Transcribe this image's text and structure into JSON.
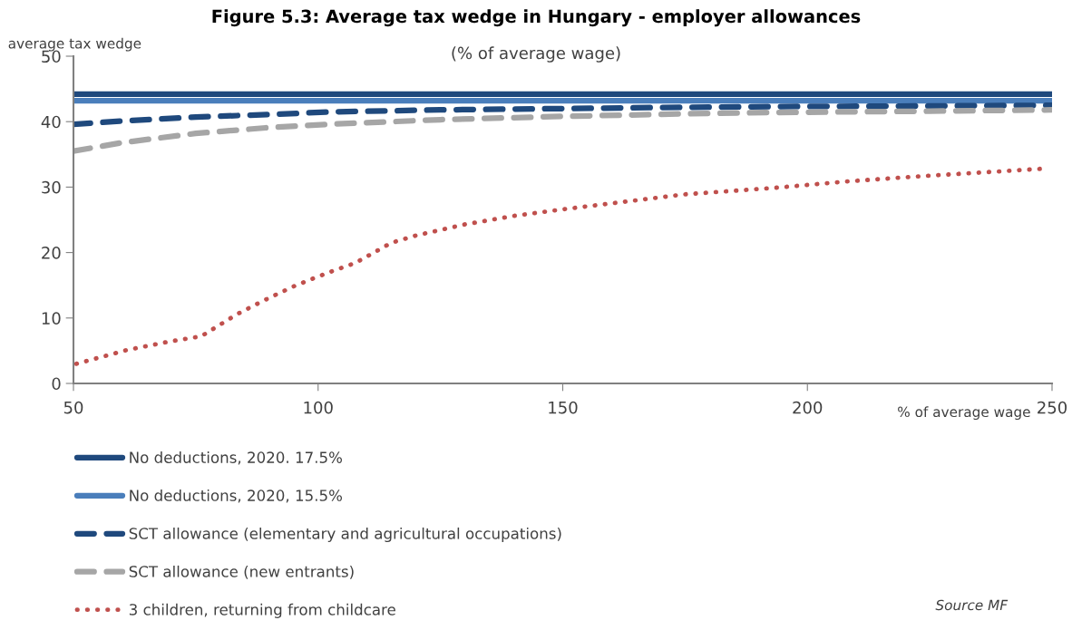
{
  "chart_data": {
    "type": "line",
    "title": "Figure 5.3: Average tax wedge in Hungary - employer allowances",
    "subtitle": "(% of average wage)",
    "xlabel": "% of average wage",
    "ylabel": "average tax wedge",
    "xlim": [
      50,
      250
    ],
    "ylim": [
      0,
      50
    ],
    "xticks": [
      50,
      100,
      150,
      200,
      250
    ],
    "yticks": [
      0,
      10,
      20,
      30,
      40,
      50
    ],
    "grid": false,
    "legend": "bottom",
    "series": [
      {
        "name": "No deductions, 2020. 17.5%",
        "color": "#1f497d",
        "line_style": "solid",
        "x": [
          50,
          250
        ],
        "values": [
          44.2,
          44.2
        ]
      },
      {
        "name": "No deductions, 2020, 15.5%",
        "color": "#4a7ebb",
        "line_style": "solid",
        "x": [
          50,
          250
        ],
        "values": [
          43.2,
          43.2
        ]
      },
      {
        "name": "SCT allowance (elementary and agricultural occupations)",
        "color": "#1f497d",
        "line_style": "dashed",
        "x": [
          50,
          60,
          75,
          90,
          103,
          125,
          150,
          175,
          193,
          225,
          250
        ],
        "values": [
          39.6,
          40.1,
          40.7,
          41.1,
          41.5,
          41.8,
          42.0,
          42.2,
          42.3,
          42.4,
          42.5
        ]
      },
      {
        "name": "SCT allowance (new entrants)",
        "color": "#a6a6a6",
        "line_style": "dashed",
        "x": [
          50,
          60,
          75,
          90,
          105,
          125,
          150,
          175,
          193,
          225,
          250
        ],
        "values": [
          35.5,
          36.8,
          38.2,
          39.1,
          39.7,
          40.3,
          40.8,
          41.2,
          41.4,
          41.6,
          41.8
        ]
      },
      {
        "name": "3 children, returning from childcare",
        "color": "#c0504d",
        "line_style": "dotted",
        "x": [
          50.6,
          60.9,
          69.6,
          76.1,
          79.8,
          83.5,
          87.4,
          91.2,
          95.2,
          99.2,
          103.4,
          107.6,
          115,
          120,
          130,
          140,
          150,
          175,
          193.5,
          208.6,
          223.9,
          239.2,
          247.8
        ],
        "values": [
          3.0,
          5.1,
          6.4,
          7.2,
          8.9,
          10.6,
          12.1,
          13.5,
          14.9,
          16.1,
          17.3,
          18.4,
          21.5,
          22.6,
          24.3,
          25.6,
          26.6,
          28.9,
          29.9,
          30.9,
          31.7,
          32.4,
          32.8
        ]
      }
    ],
    "annotations": [
      "Source MF"
    ]
  }
}
